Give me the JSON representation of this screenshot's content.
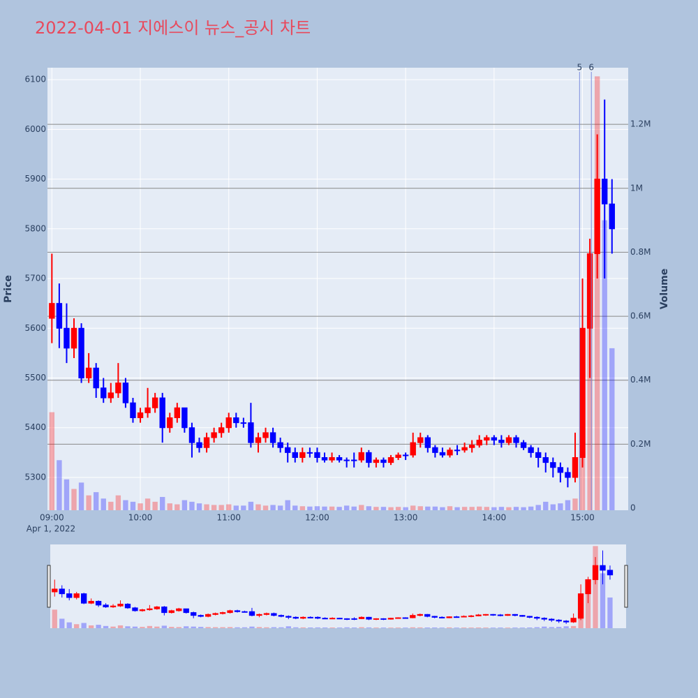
{
  "chart_data": {
    "type": "candlestick",
    "title": "2022-04-01 지에스이 뉴스_공시 차트",
    "x": [
      "09:00",
      "09:05",
      "09:10",
      "09:15",
      "09:20",
      "09:25",
      "09:30",
      "09:35",
      "09:40",
      "09:45",
      "09:50",
      "09:55",
      "10:00",
      "10:05",
      "10:10",
      "10:15",
      "10:20",
      "10:25",
      "10:30",
      "10:35",
      "10:40",
      "10:45",
      "10:50",
      "10:55",
      "11:00",
      "11:05",
      "11:10",
      "11:15",
      "11:20",
      "11:25",
      "11:30",
      "11:35",
      "11:40",
      "11:45",
      "11:50",
      "11:55",
      "12:00",
      "12:05",
      "12:10",
      "12:15",
      "12:20",
      "12:25",
      "12:30",
      "12:35",
      "12:40",
      "12:45",
      "12:50",
      "12:55",
      "13:00",
      "13:05",
      "13:10",
      "13:15",
      "13:20",
      "13:25",
      "13:30",
      "13:35",
      "13:40",
      "13:45",
      "13:50",
      "13:55",
      "14:00",
      "14:05",
      "14:10",
      "14:15",
      "14:20",
      "14:25",
      "14:30",
      "14:35",
      "14:40",
      "14:45",
      "14:50",
      "14:55",
      "15:00",
      "15:05",
      "15:10",
      "15:15",
      "15:20"
    ],
    "open": [
      5620,
      5650,
      5600,
      5560,
      5600,
      5500,
      5520,
      5480,
      5460,
      5470,
      5490,
      5450,
      5420,
      5430,
      5440,
      5460,
      5400,
      5420,
      5440,
      5400,
      5370,
      5360,
      5380,
      5390,
      5400,
      5420,
      5410,
      5410,
      5370,
      5380,
      5390,
      5370,
      5360,
      5350,
      5340,
      5350,
      5350,
      5340,
      5335,
      5340,
      5335,
      5335,
      5335,
      5350,
      5330,
      5335,
      5330,
      5340,
      5345,
      5345,
      5370,
      5380,
      5360,
      5350,
      5345,
      5355,
      5355,
      5360,
      5365,
      5375,
      5380,
      5375,
      5370,
      5380,
      5370,
      5360,
      5350,
      5340,
      5330,
      5320,
      5310,
      5300,
      5340,
      5600,
      5750,
      5900,
      5850
    ],
    "high": [
      5750,
      5690,
      5650,
      5620,
      5610,
      5550,
      5530,
      5500,
      5490,
      5530,
      5500,
      5460,
      5440,
      5480,
      5470,
      5470,
      5430,
      5450,
      5440,
      5410,
      5380,
      5390,
      5400,
      5410,
      5430,
      5430,
      5420,
      5450,
      5390,
      5400,
      5400,
      5380,
      5370,
      5360,
      5360,
      5360,
      5360,
      5350,
      5350,
      5345,
      5340,
      5350,
      5360,
      5355,
      5340,
      5340,
      5345,
      5350,
      5350,
      5390,
      5390,
      5385,
      5365,
      5360,
      5360,
      5365,
      5370,
      5375,
      5385,
      5385,
      5385,
      5385,
      5385,
      5385,
      5375,
      5365,
      5360,
      5350,
      5340,
      5330,
      5320,
      5390,
      5700,
      5780,
      5990,
      6060,
      5900
    ],
    "low": [
      5570,
      5560,
      5530,
      5540,
      5490,
      5490,
      5460,
      5450,
      5450,
      5460,
      5440,
      5410,
      5410,
      5420,
      5430,
      5370,
      5390,
      5410,
      5390,
      5340,
      5350,
      5350,
      5370,
      5380,
      5390,
      5400,
      5400,
      5360,
      5350,
      5370,
      5360,
      5350,
      5330,
      5330,
      5330,
      5340,
      5330,
      5330,
      5330,
      5330,
      5320,
      5320,
      5330,
      5320,
      5320,
      5320,
      5325,
      5335,
      5335,
      5340,
      5360,
      5350,
      5340,
      5340,
      5340,
      5345,
      5350,
      5350,
      5360,
      5365,
      5365,
      5360,
      5365,
      5360,
      5355,
      5340,
      5320,
      5310,
      5300,
      5290,
      5280,
      5290,
      5320,
      5500,
      5700,
      5700,
      5750
    ],
    "close": [
      5650,
      5600,
      5560,
      5600,
      5500,
      5520,
      5480,
      5460,
      5470,
      5490,
      5450,
      5420,
      5430,
      5440,
      5460,
      5400,
      5420,
      5440,
      5400,
      5370,
      5360,
      5380,
      5390,
      5400,
      5420,
      5410,
      5410,
      5370,
      5380,
      5390,
      5370,
      5360,
      5350,
      5340,
      5350,
      5350,
      5340,
      5335,
      5340,
      5335,
      5335,
      5335,
      5350,
      5330,
      5335,
      5330,
      5340,
      5345,
      5345,
      5370,
      5380,
      5360,
      5350,
      5345,
      5355,
      5355,
      5360,
      5365,
      5375,
      5380,
      5375,
      5370,
      5380,
      5370,
      5360,
      5350,
      5340,
      5330,
      5320,
      5310,
      5300,
      5340,
      5600,
      5750,
      5900,
      5850,
      5800
    ],
    "volume": [
      300000,
      150000,
      90000,
      60000,
      80000,
      40000,
      50000,
      30000,
      20000,
      40000,
      25000,
      20000,
      15000,
      30000,
      20000,
      35000,
      15000,
      12000,
      25000,
      20000,
      15000,
      12000,
      10000,
      10000,
      12000,
      8000,
      8000,
      20000,
      12000,
      8000,
      10000,
      8000,
      25000,
      8000,
      6000,
      5000,
      6000,
      5000,
      5000,
      4000,
      8000,
      5000,
      10000,
      6000,
      4000,
      4000,
      3000,
      4000,
      3000,
      8000,
      6000,
      5000,
      5000,
      3000,
      6000,
      3000,
      4000,
      4000,
      5000,
      4000,
      3000,
      4000,
      3000,
      4000,
      3000,
      5000,
      10000,
      20000,
      12000,
      15000,
      25000,
      30000,
      450000,
      600000,
      1350000,
      900000,
      500000
    ],
    "increasing_color": "#ff0000",
    "decreasing_color": "#0000ff",
    "xlim": [
      "08:57",
      "15:31"
    ],
    "xticks": [
      "09:00",
      "10:00",
      "11:00",
      "12:00",
      "13:00",
      "14:00",
      "15:00"
    ],
    "x_date_label": "Apr 1, 2022",
    "ylim": [
      5234,
      6124
    ],
    "yticks": [
      5300,
      5400,
      5500,
      5600,
      5700,
      5800,
      5900,
      6000,
      6100
    ],
    "ylabel": "Price",
    "y2lim": [
      -6500,
      1377000
    ],
    "y2ticks": [
      0,
      {
        "value": 200000,
        "label": "0.2M"
      },
      {
        "value": 400000,
        "label": "0.4M"
      },
      {
        "value": 600000,
        "label": "0.6M"
      },
      {
        "value": 800000,
        "label": "0.8M"
      },
      {
        "value": 1000000,
        "label": "1M"
      },
      {
        "value": 1200000,
        "label": "1.2M"
      }
    ],
    "y2label": "Volume",
    "markers": [
      {
        "x": "14:58",
        "label": "5"
      },
      {
        "x": "15:06",
        "label": "6"
      }
    ],
    "grid": true,
    "range_slider": true
  }
}
